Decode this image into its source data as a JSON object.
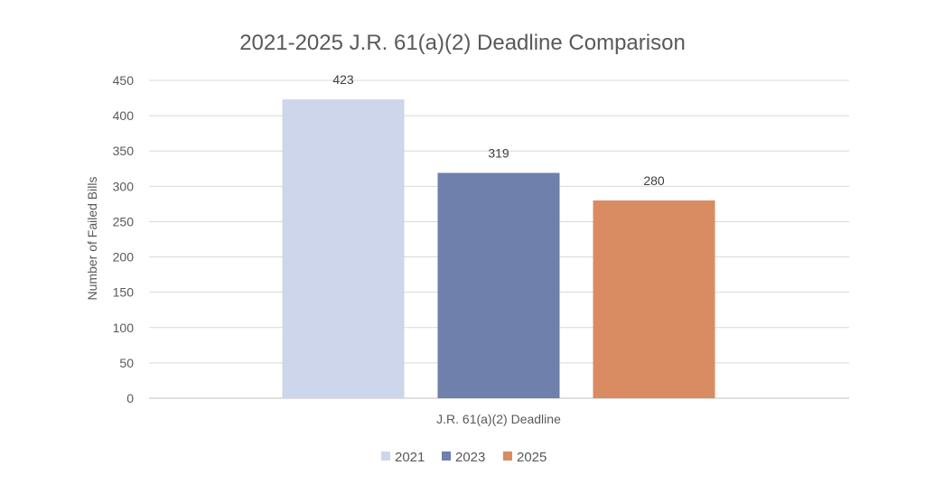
{
  "chart_data": {
    "type": "bar",
    "title": "2021-2025 J.R. 61(a)(2) Deadline Comparison",
    "xlabel": "J.R. 61(a)(2) Deadline",
    "ylabel": "Number of Failed Bills",
    "categories": [
      "J.R. 61(a)(2) Deadline"
    ],
    "ylim": [
      0,
      450
    ],
    "yticks": [
      0,
      50,
      100,
      150,
      200,
      250,
      300,
      350,
      400,
      450
    ],
    "grid": true,
    "legend_position": "bottom",
    "series": [
      {
        "name": "2021",
        "values": [
          423
        ],
        "color": "#cdd6ea"
      },
      {
        "name": "2023",
        "values": [
          319
        ],
        "color": "#6e80ab"
      },
      {
        "name": "2025",
        "values": [
          280
        ],
        "color": "#d98b62"
      }
    ]
  }
}
